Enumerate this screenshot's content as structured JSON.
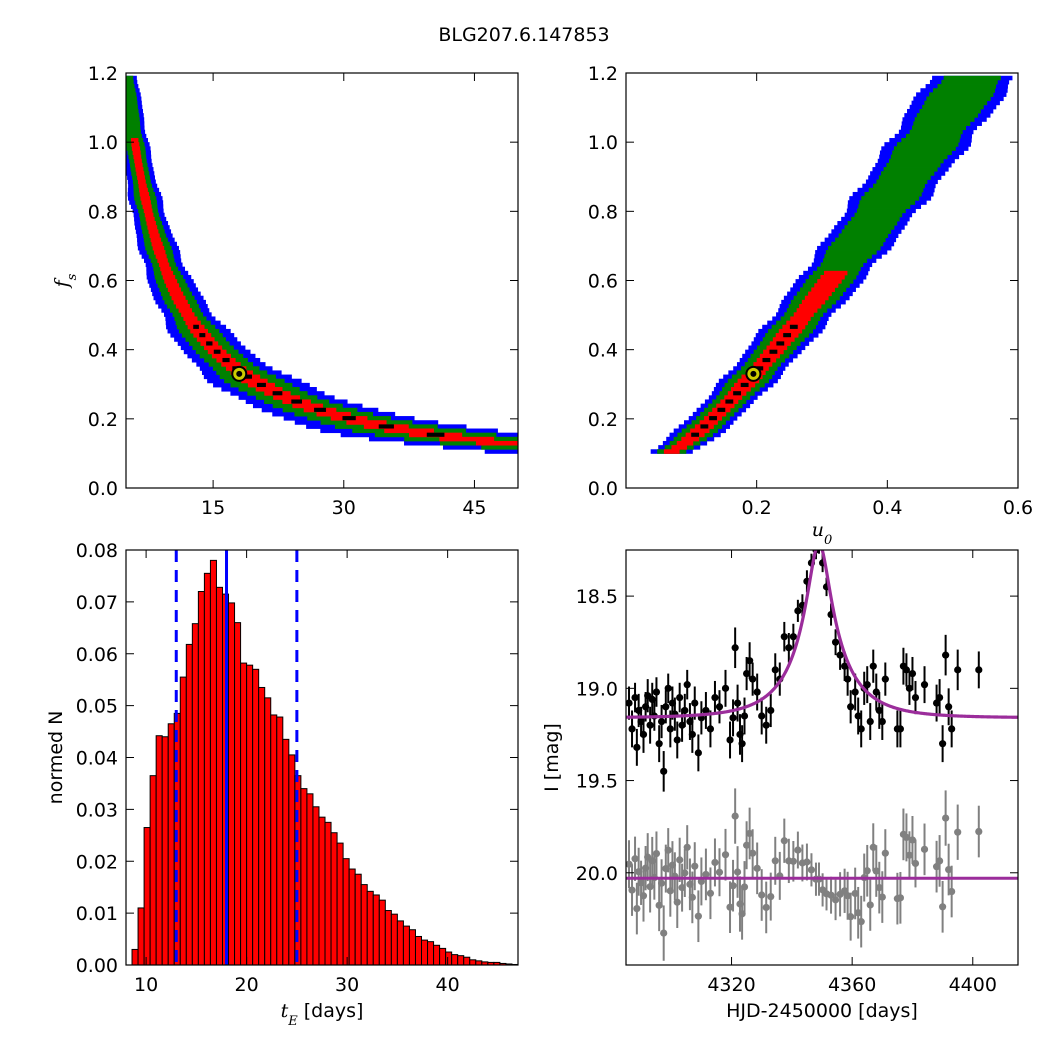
{
  "figure": {
    "suptitle": "BLG207.6.147853"
  },
  "colors": {
    "sigma3": "#0000ff",
    "sigma2": "#008000",
    "sigma1": "#ff0000",
    "best_cell": "#000000",
    "best_marker": "#cccc00",
    "hist_bar": "#ff0000",
    "vline": "#0000ff",
    "model": "#9b2d9b",
    "obs": "#000000",
    "resid": "#808080"
  },
  "chart_data": [
    {
      "type": "heatmap",
      "panel": "tE-fs",
      "title": "",
      "xlabel": "",
      "ylabel": "f_s",
      "ylabel_parts": {
        "base": "f",
        "sub": "s"
      },
      "xlim": [
        5,
        50
      ],
      "ylim": [
        0.0,
        1.2
      ],
      "xticks": [
        "15",
        "30",
        "45"
      ],
      "xtick_values": [
        15,
        30,
        45
      ],
      "yticks": [
        "0.0",
        "0.2",
        "0.4",
        "0.6",
        "0.8",
        "1.0",
        "1.2"
      ],
      "ytick_values": [
        0.0,
        0.2,
        0.4,
        0.6,
        0.8,
        1.0,
        1.2
      ],
      "relation": "fs = 6.0 / tE",
      "fs_range": [
        0.1,
        1.18
      ],
      "confidence_levels": [
        "3-sigma",
        "2-sigma",
        "1-sigma"
      ],
      "best_fit": {
        "x": 18.0,
        "y": 0.33
      }
    },
    {
      "type": "heatmap",
      "panel": "u0-fs",
      "title": "",
      "xlabel": "u_0",
      "xlabel_parts": {
        "base": "u",
        "sub": "0"
      },
      "ylabel": "",
      "xlim": [
        0.0,
        0.6
      ],
      "ylim": [
        0.0,
        1.2
      ],
      "xticks": [
        "0.2",
        "0.4",
        "0.6"
      ],
      "xtick_values": [
        0.2,
        0.4,
        0.6
      ],
      "yticks": [
        "0.0",
        "0.2",
        "0.4",
        "0.6",
        "0.8",
        "1.0",
        "1.2"
      ],
      "ytick_values": [
        0.0,
        0.2,
        0.4,
        0.6,
        0.8,
        1.0,
        1.2
      ],
      "relation": "u0 rises with fs from (0.07, 0.10) to (0.53, 1.18)",
      "fs_range": [
        0.1,
        1.18
      ],
      "confidence_levels": [
        "3-sigma",
        "2-sigma",
        "1-sigma"
      ],
      "best_fit": {
        "x": 0.195,
        "y": 0.33
      }
    },
    {
      "type": "bar",
      "panel": "tE-histogram",
      "title": "",
      "xlabel": "t_E  [days]",
      "xlabel_parts": {
        "base": "t",
        "sub": "E",
        "rest": "  [days]"
      },
      "ylabel": "normed N",
      "xlim": [
        8,
        47
      ],
      "ylim": [
        0.0,
        0.08
      ],
      "xticks": [
        "10",
        "20",
        "30",
        "40"
      ],
      "xtick_values": [
        10,
        20,
        30,
        40
      ],
      "yticks": [
        "0.00",
        "0.01",
        "0.02",
        "0.03",
        "0.04",
        "0.05",
        "0.06",
        "0.07",
        "0.08"
      ],
      "ytick_values": [
        0.0,
        0.01,
        0.02,
        0.03,
        0.04,
        0.05,
        0.06,
        0.07,
        0.08
      ],
      "bin_start": 8.6,
      "bin_width": 0.6,
      "values": [
        0.003,
        0.011,
        0.0265,
        0.0365,
        0.0442,
        0.044,
        0.0465,
        0.0485,
        0.0555,
        0.0618,
        0.0658,
        0.072,
        0.0755,
        0.078,
        0.0728,
        0.0715,
        0.0698,
        0.066,
        0.0582,
        0.0578,
        0.057,
        0.0535,
        0.0515,
        0.0482,
        0.0478,
        0.0435,
        0.0405,
        0.0365,
        0.034,
        0.033,
        0.0305,
        0.0285,
        0.0275,
        0.0255,
        0.0235,
        0.0205,
        0.0185,
        0.0175,
        0.0155,
        0.0142,
        0.0135,
        0.0125,
        0.0105,
        0.0098,
        0.0085,
        0.0075,
        0.0068,
        0.0055,
        0.0048,
        0.0045,
        0.0038,
        0.0032,
        0.0025,
        0.002,
        0.0018,
        0.0015,
        0.001,
        0.0008,
        0.0006,
        0.0005,
        0.0005,
        0.0003,
        0.0002,
        0.0001
      ],
      "vlines": [
        {
          "x": 13.0,
          "style": "dashed"
        },
        {
          "x": 18.0,
          "style": "solid"
        },
        {
          "x": 25.0,
          "style": "dashed"
        }
      ]
    },
    {
      "type": "scatter",
      "panel": "light-curve",
      "title": "",
      "xlabel": "HJD-2450000 [days]",
      "ylabel": "I [mag]",
      "xlim": [
        4285,
        4415
      ],
      "ylim": [
        20.5,
        18.25
      ],
      "y_inverted": true,
      "xticks": [
        "4320",
        "4360",
        "4400"
      ],
      "xtick_values": [
        4320,
        4360,
        4400
      ],
      "yticks": [
        "18.5",
        "19.0",
        "19.5",
        "20.0"
      ],
      "ytick_values": [
        18.5,
        19.0,
        19.5,
        20.0
      ],
      "model": {
        "t0": 4349.0,
        "tE": 18.0,
        "u0": 0.195,
        "fs": 0.33,
        "I_base": 19.16
      },
      "residual_offset": 20.03,
      "series": [
        {
          "name": "",
          "role": "observations",
          "points": [
            [
              4286,
              19.08,
              0.09
            ],
            [
              4287,
              19.22,
              0.1
            ],
            [
              4288,
              19.05,
              0.08
            ],
            [
              4288.6,
              19.32,
              0.1
            ],
            [
              4289.2,
              19.12,
              0.09
            ],
            [
              4290,
              19.18,
              0.08
            ],
            [
              4290.8,
              19.25,
              0.1
            ],
            [
              4291.5,
              19.1,
              0.08
            ],
            [
              4292.2,
              19.04,
              0.09
            ],
            [
              4293,
              19.2,
              0.1
            ],
            [
              4293.7,
              19.06,
              0.09
            ],
            [
              4294.4,
              19.15,
              0.08
            ],
            [
              4295.1,
              19.02,
              0.08
            ],
            [
              4296,
              19.3,
              0.1
            ],
            [
              4296.8,
              19.18,
              0.09
            ],
            [
              4297.5,
              19.45,
              0.11
            ],
            [
              4298.2,
              19.1,
              0.09
            ],
            [
              4299,
              19.0,
              0.08
            ],
            [
              4299.7,
              19.22,
              0.1
            ],
            [
              4300.4,
              19.08,
              0.09
            ],
            [
              4301.2,
              19.14,
              0.09
            ],
            [
              4302,
              19.28,
              0.1
            ],
            [
              4302.8,
              19.05,
              0.08
            ],
            [
              4303.6,
              19.2,
              0.09
            ],
            [
              4304.5,
              19.12,
              0.09
            ],
            [
              4305.3,
              18.98,
              0.08
            ],
            [
              4306.2,
              19.18,
              0.1
            ],
            [
              4307,
              19.25,
              0.1
            ],
            [
              4307.8,
              19.08,
              0.09
            ],
            [
              4309,
              19.35,
              0.1
            ],
            [
              4310,
              19.16,
              0.09
            ],
            [
              4311.5,
              19.12,
              0.1
            ],
            [
              4313,
              19.22,
              0.1
            ],
            [
              4314.5,
              19.05,
              0.09
            ],
            [
              4316,
              19.1,
              0.09
            ],
            [
              4318,
              19.0,
              0.1
            ],
            [
              4319.5,
              19.28,
              0.1
            ],
            [
              4320.5,
              19.16,
              0.1
            ],
            [
              4321.2,
              18.78,
              0.11
            ],
            [
              4322,
              19.08,
              0.1
            ],
            [
              4322.8,
              19.25,
              0.11
            ],
            [
              4323.5,
              19.3,
              0.1
            ],
            [
              4324.3,
              19.15,
              0.1
            ],
            [
              4325,
              18.92,
              0.09
            ],
            [
              4326,
              18.85,
              0.1
            ],
            [
              4327,
              18.95,
              0.09
            ],
            [
              4328.5,
              19.02,
              0.1
            ],
            [
              4330,
              19.15,
              0.1
            ],
            [
              4331.5,
              19.2,
              0.1
            ],
            [
              4333,
              19.12,
              0.09
            ],
            [
              4334.5,
              18.9,
              0.09
            ],
            [
              4336,
              18.95,
              0.09
            ],
            [
              4337.5,
              18.72,
              0.08
            ],
            [
              4339,
              18.78,
              0.08
            ],
            [
              4340.5,
              18.72,
              0.07
            ],
            [
              4342,
              18.58,
              0.06
            ],
            [
              4343.5,
              18.55,
              0.06
            ],
            [
              4345,
              18.42,
              0.06
            ],
            [
              4346.5,
              18.32,
              0.05
            ],
            [
              4348,
              18.25,
              0.05
            ],
            [
              4349,
              18.22,
              0.05
            ],
            [
              4350.2,
              18.32,
              0.05
            ],
            [
              4351.5,
              18.45,
              0.05
            ],
            [
              4353,
              18.6,
              0.06
            ],
            [
              4354.5,
              18.75,
              0.07
            ],
            [
              4356,
              18.82,
              0.08
            ],
            [
              4357.5,
              18.88,
              0.08
            ],
            [
              4358.5,
              18.95,
              0.09
            ],
            [
              4359.5,
              19.1,
              0.09
            ],
            [
              4361,
              19.02,
              0.1
            ],
            [
              4362,
              19.15,
              0.1
            ],
            [
              4363,
              19.22,
              0.1
            ],
            [
              4364,
              19.0,
              0.09
            ],
            [
              4365,
              18.98,
              0.1
            ],
            [
              4366,
              19.18,
              0.1
            ],
            [
              4367,
              18.88,
              0.09
            ],
            [
              4368,
              19.02,
              0.1
            ],
            [
              4369,
              19.12,
              0.1
            ],
            [
              4370,
              19.18,
              0.1
            ],
            [
              4371,
              18.95,
              0.09
            ],
            [
              4375,
              19.22,
              0.1
            ],
            [
              4376,
              19.22,
              0.1
            ],
            [
              4377,
              18.88,
              0.1
            ],
            [
              4378,
              18.9,
              0.09
            ],
            [
              4379,
              19.0,
              0.09
            ],
            [
              4380,
              18.92,
              0.09
            ],
            [
              4381,
              19.05,
              0.09
            ],
            [
              4384,
              18.98,
              0.1
            ],
            [
              4388,
              19.08,
              0.1
            ],
            [
              4389,
              19.05,
              0.1
            ],
            [
              4390,
              19.3,
              0.1
            ],
            [
              4391,
              18.82,
              0.11
            ],
            [
              4392,
              19.1,
              0.1
            ],
            [
              4393,
              19.22,
              0.1
            ],
            [
              4395,
              18.9,
              0.11
            ],
            [
              4402,
              18.9,
              0.1
            ]
          ]
        },
        {
          "name": "",
          "role": "residuals",
          "points": []
        }
      ]
    }
  ]
}
